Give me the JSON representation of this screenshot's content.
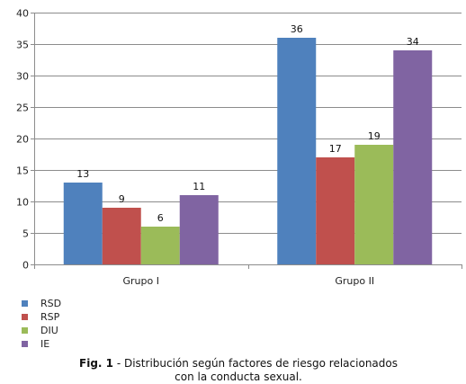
{
  "chart_data": {
    "type": "bar",
    "categories": [
      "Grupo I",
      "Grupo II"
    ],
    "series": [
      {
        "name": "RSD",
        "values": [
          13,
          36
        ],
        "color": "#4F81BD"
      },
      {
        "name": "RSP",
        "values": [
          9,
          17
        ],
        "color": "#C0504D"
      },
      {
        "name": "DIU",
        "values": [
          6,
          19
        ],
        "color": "#9BBB59"
      },
      {
        "name": "IE",
        "values": [
          11,
          34
        ],
        "color": "#8064A2"
      }
    ],
    "ylim": [
      0,
      40
    ],
    "yticks": [
      0,
      5,
      10,
      15,
      20,
      25,
      30,
      35,
      40
    ],
    "grid": true,
    "legend_position": "bottom-left"
  },
  "caption": {
    "fig_label": "Fig. 1",
    "text": " - Distribución según factores de riesgo relacionados",
    "line2": "con la conducta sexual."
  }
}
